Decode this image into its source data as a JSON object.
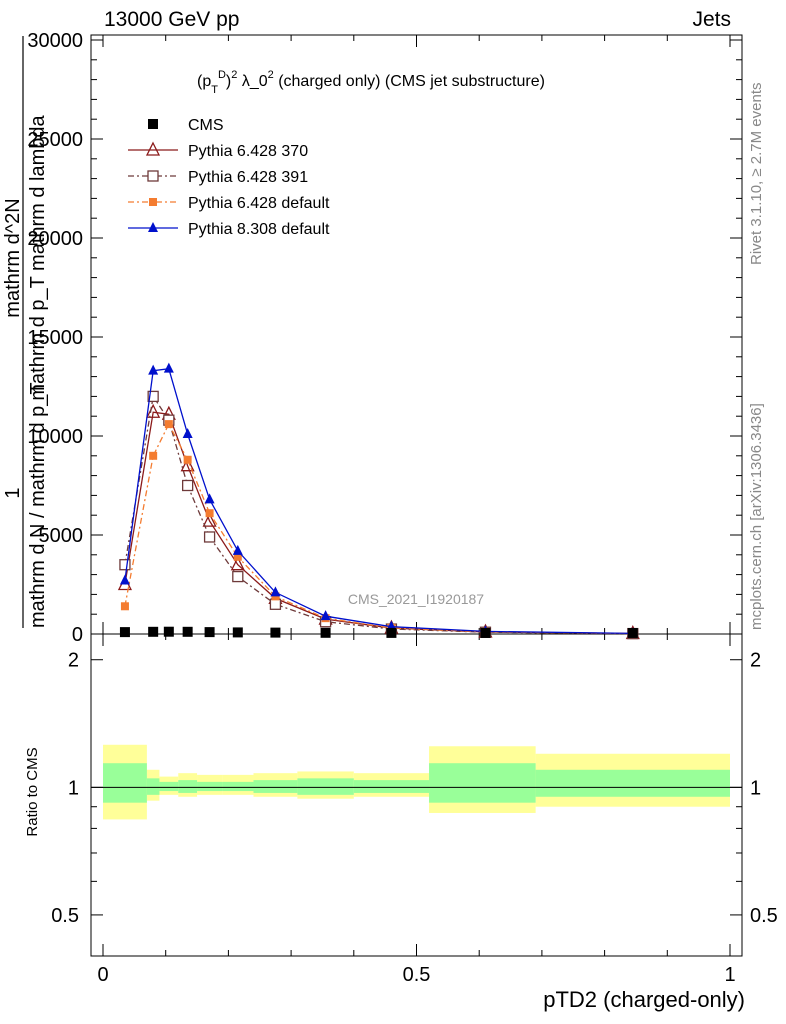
{
  "header": {
    "left": "13000 GeV pp",
    "right": "Jets"
  },
  "side_labels": {
    "rivet": "Rivet 3.1.10, ≥ 2.7M events",
    "mcplots": "mcplots.cern.ch [arXiv:1306.3436]"
  },
  "watermark": "CMS_2021_I1920187",
  "chart_data": {
    "type": "line",
    "title": "(p_T^D)^2 λ_0^2 (charged only) (CMS jet substructure)",
    "title_parts": {
      "p": "(p",
      "sub": "T",
      "sup": "D",
      "close": ")",
      "sup2": "2",
      "mid": " λ_0",
      "sup3": "2",
      "tail": " (charged only) (CMS jet substructure)"
    },
    "xlabel": "pTD2 (charged-only)",
    "ylabel_parts": {
      "one": "1",
      "denom": "mathrm d N / mathrm d p_T",
      "tsub": "T",
      "num": "mathrm d^2N",
      "denom2": "mathrm d p_T mathrm d lambda"
    },
    "ratio_ylabel": "Ratio to CMS",
    "xlim": [
      0,
      1
    ],
    "ylim": [
      0,
      30000
    ],
    "ratio_ylim": [
      0.4,
      2.3
    ],
    "x_ticks": [
      0,
      0.5,
      1
    ],
    "x_tick_labels": [
      "0",
      "0.5",
      "1"
    ],
    "y_ticks": [
      0,
      5000,
      10000,
      15000,
      20000,
      25000,
      30000
    ],
    "y_tick_labels": [
      "0",
      "5000",
      "10000",
      "15000",
      "20000",
      "25000",
      "30000"
    ],
    "ratio_y_ticks": [
      0.5,
      1,
      2
    ],
    "ratio_y_tick_labels": [
      "0.5",
      "1",
      "2"
    ],
    "legend": [
      {
        "name": "CMS",
        "color": "#000000",
        "marker": "square-filled",
        "dash": ""
      },
      {
        "name": "Pythia 6.428 370",
        "color": "#8b1a1a",
        "marker": "triangle-open",
        "dash": ""
      },
      {
        "name": "Pythia 6.428 391",
        "color": "#6e3a3a",
        "marker": "square-open",
        "dash": "6,3,2,3"
      },
      {
        "name": "Pythia 6.428 default",
        "color": "#f47c30",
        "marker": "square-filled-small",
        "dash": "6,3,2,3"
      },
      {
        "name": "Pythia 8.308 default",
        "color": "#0010cc",
        "marker": "triangle-filled",
        "dash": ""
      }
    ],
    "cms": {
      "x": [
        0.035,
        0.08,
        0.105,
        0.135,
        0.17,
        0.215,
        0.275,
        0.355,
        0.46,
        0.61,
        0.845
      ],
      "y": [
        45,
        60,
        65,
        60,
        45,
        30,
        20,
        10,
        5,
        2,
        1
      ]
    },
    "series": [
      {
        "name": "Pythia 6.428 370",
        "x": [
          0.035,
          0.08,
          0.105,
          0.135,
          0.17,
          0.215,
          0.275,
          0.355,
          0.46,
          0.61,
          0.845
        ],
        "y": [
          2500,
          11200,
          11100,
          8500,
          5700,
          3500,
          1800,
          750,
          300,
          100,
          25
        ]
      },
      {
        "name": "Pythia 6.428 391",
        "x": [
          0.035,
          0.08,
          0.105,
          0.135,
          0.17,
          0.215,
          0.275,
          0.355,
          0.46,
          0.61,
          0.845
        ],
        "y": [
          3500,
          12000,
          10800,
          7500,
          4900,
          2900,
          1500,
          620,
          250,
          90,
          20
        ]
      },
      {
        "name": "Pythia 6.428 default",
        "x": [
          0.035,
          0.08,
          0.105,
          0.135,
          0.17,
          0.215,
          0.275,
          0.355,
          0.46,
          0.61,
          0.845
        ],
        "y": [
          1400,
          9000,
          10600,
          8800,
          6100,
          3900,
          1900,
          800,
          310,
          110,
          25
        ]
      },
      {
        "name": "Pythia 8.308 default",
        "x": [
          0.035,
          0.08,
          0.105,
          0.135,
          0.17,
          0.215,
          0.275,
          0.355,
          0.46,
          0.61,
          0.845
        ],
        "y": [
          2700,
          13300,
          13400,
          10100,
          6800,
          4200,
          2100,
          900,
          370,
          130,
          30
        ]
      }
    ],
    "ratio_bands": [
      {
        "x0": 0.0,
        "x1": 0.07,
        "outer": [
          0.84,
          1.26
        ],
        "inner": [
          0.92,
          1.14
        ]
      },
      {
        "x0": 0.07,
        "x1": 0.09,
        "outer": [
          0.93,
          1.1
        ],
        "inner": [
          0.96,
          1.05
        ]
      },
      {
        "x0": 0.09,
        "x1": 0.12,
        "outer": [
          0.96,
          1.06
        ],
        "inner": [
          0.98,
          1.03
        ]
      },
      {
        "x0": 0.12,
        "x1": 0.15,
        "outer": [
          0.95,
          1.08
        ],
        "inner": [
          0.97,
          1.04
        ]
      },
      {
        "x0": 0.15,
        "x1": 0.19,
        "outer": [
          0.96,
          1.07
        ],
        "inner": [
          0.98,
          1.03
        ]
      },
      {
        "x0": 0.19,
        "x1": 0.24,
        "outer": [
          0.96,
          1.07
        ],
        "inner": [
          0.98,
          1.03
        ]
      },
      {
        "x0": 0.24,
        "x1": 0.31,
        "outer": [
          0.95,
          1.08
        ],
        "inner": [
          0.97,
          1.04
        ]
      },
      {
        "x0": 0.31,
        "x1": 0.4,
        "outer": [
          0.94,
          1.09
        ],
        "inner": [
          0.96,
          1.05
        ]
      },
      {
        "x0": 0.4,
        "x1": 0.52,
        "outer": [
          0.95,
          1.08
        ],
        "inner": [
          0.97,
          1.04
        ]
      },
      {
        "x0": 0.52,
        "x1": 0.69,
        "outer": [
          0.87,
          1.25
        ],
        "inner": [
          0.92,
          1.14
        ]
      },
      {
        "x0": 0.69,
        "x1": 1.0,
        "outer": [
          0.9,
          1.2
        ],
        "inner": [
          0.95,
          1.1
        ]
      }
    ],
    "colors": {
      "band_outer": "#ffff99",
      "band_inner": "#99ff99"
    }
  }
}
